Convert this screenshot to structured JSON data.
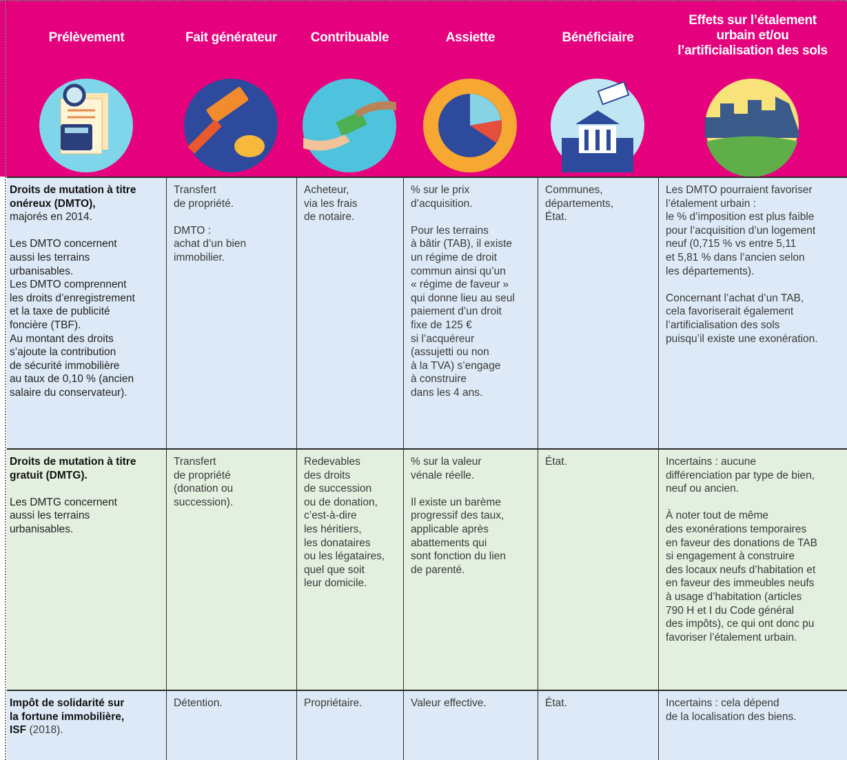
{
  "header": {
    "columns": [
      "Prélèvement",
      "Fait générateur",
      "Contribuable",
      "Assiette",
      "Bénéficiaire",
      [
        "Effets sur l’étalement",
        "urbain et/ou",
        "l’artificialisation des sols"
      ]
    ]
  },
  "table": {
    "rows": [
      {
        "first": {
          "title": [
            "Droits de mutation à titre",
            "onéreux (DMTO),"
          ],
          "text": [
            "majorés en 2014."
          ],
          "paragraphs": [
            [
              "Les DMTO concernent",
              "aussi les terrains",
              "urbanisables.",
              "Les DMTO comprennent",
              "les droits d’enregistrement",
              "et la taxe de publicité",
              "foncière (TBF).",
              "Au montant des droits",
              "s’ajoute la contribution",
              "de sécurité immobilière",
              "au taux de 0,10 % (ancien",
              "salaire du conservateur)."
            ]
          ]
        },
        "cells": [
          [
            [
              "Transfert",
              "de propriété."
            ],
            [
              "DMTO :",
              "achat d’un bien",
              "immobilier."
            ]
          ],
          [
            [
              "Acheteur,",
              "via les frais",
              "de notaire."
            ]
          ],
          [
            [
              "% sur le prix",
              "d’acquisition."
            ],
            [
              "Pour les terrains",
              "à bâtir (TAB), il existe",
              "un régime de droit",
              "commun ainsi qu’un",
              "« régime de faveur »",
              "qui donne lieu au seul",
              "paiement d’un droit",
              "fixe de 125 €",
              "si l’acquéreur",
              "(assujetti ou non",
              "à la TVA) s’engage",
              "à construire",
              "dans les 4 ans."
            ]
          ],
          [
            [
              "Communes,",
              "départements,",
              "État."
            ]
          ],
          [
            [
              "Les DMTO pourraient favoriser",
              "l’étalement urbain :",
              "le % d’imposition est plus faible",
              "pour l’acquisition d’un logement",
              "neuf (0,715 % vs entre 5,11",
              "et 5,81 % dans l’ancien selon",
              "les départements)."
            ],
            [
              "Concernant l’achat d’un TAB,",
              "cela favoriserait également",
              "l’artificialisation des sols",
              "puisqu’il existe une exonération."
            ]
          ]
        ]
      },
      {
        "first": {
          "title": [
            "Droits de mutation à titre",
            "gratuit (DMTG)."
          ],
          "paragraphs": [
            [
              "Les DMTG concernent",
              "aussi les terrains",
              "urbanisables."
            ]
          ]
        },
        "cells": [
          [
            [
              "Transfert",
              "de propriété",
              "(donation ou",
              "succession)."
            ]
          ],
          [
            [
              "Redevables",
              "des droits",
              "de succession",
              "ou de donation,",
              "c’est-à-dire",
              "les héritiers,",
              "les donataires",
              "ou les légataires,",
              "quel que soit",
              "leur domicile."
            ]
          ],
          [
            [
              "% sur la valeur",
              "vénale réelle."
            ],
            [
              "Il existe un barème",
              "progressif des taux,",
              "applicable après",
              "abattements qui",
              "sont fonction du lien",
              "de parenté."
            ]
          ],
          [
            [
              "État."
            ]
          ],
          [
            [
              "Incertains : aucune",
              "différenciation par type de bien,",
              "neuf ou ancien."
            ],
            [
              "À noter tout de même",
              "des exonérations temporaires",
              "en faveur des donations de TAB",
              "si engagement à construire",
              "des locaux neufs d’habitation et",
              "en faveur des immeubles neufs",
              "à usage d’habitation (articles",
              "790 H et I du Code général",
              "des impôts), ce qui ont donc pu",
              "favoriser l’étalement urbain."
            ]
          ]
        ]
      },
      {
        "first": {
          "title": [
            "Impôt de solidarité sur",
            "la fortune immobilière,",
            "ISF"
          ],
          "suffix": "(2018)."
        },
        "cells": [
          [
            [
              "Détention."
            ]
          ],
          [
            [
              "Propriétaire."
            ]
          ],
          [
            [
              "Valeur effective."
            ]
          ],
          [
            [
              "État."
            ]
          ],
          [
            [
              "Incertains : cela dépend",
              "de la localisation des biens."
            ]
          ]
        ]
      }
    ]
  }
}
